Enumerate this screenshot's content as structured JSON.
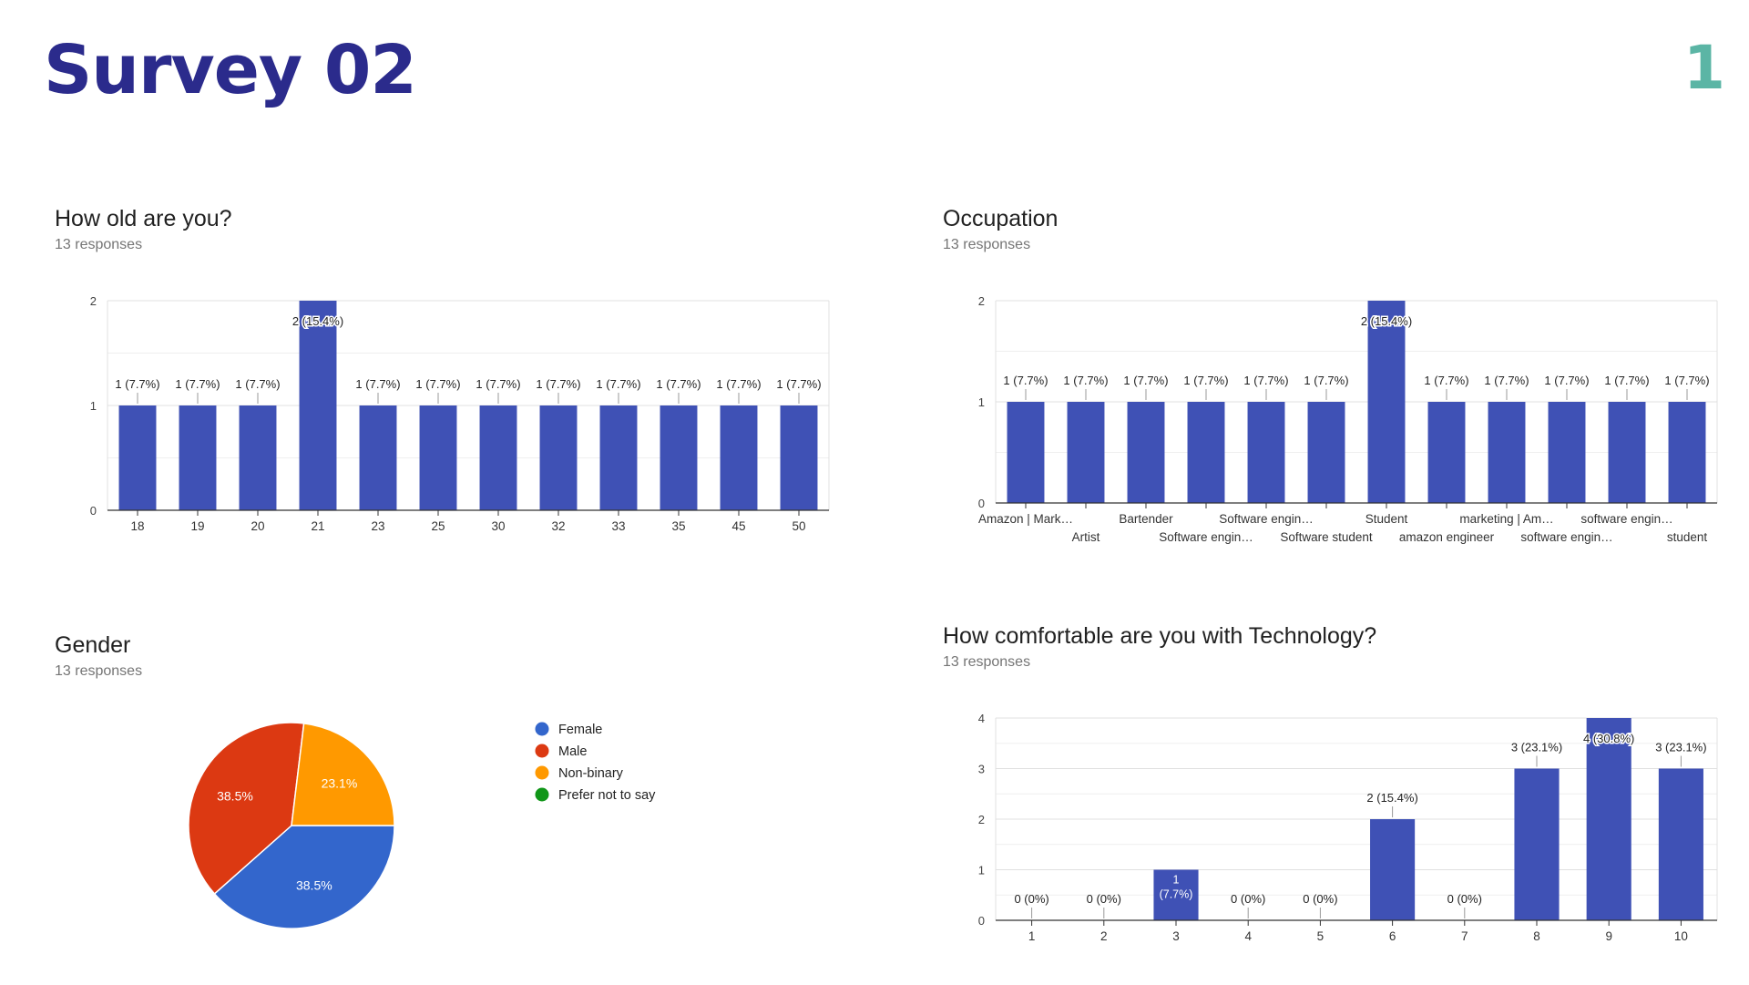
{
  "slide": {
    "title": "Survey 02",
    "page_number": "1",
    "colors": {
      "title": "#2b2b8c",
      "page_number": "#5bb5a5",
      "bar": "#3f51b5"
    }
  },
  "chart_data": [
    {
      "id": "age",
      "type": "bar",
      "title": "How old are you?",
      "subtitle": "13 responses",
      "categories": [
        "18",
        "19",
        "20",
        "21",
        "23",
        "25",
        "30",
        "32",
        "33",
        "35",
        "45",
        "50"
      ],
      "values": [
        1,
        1,
        1,
        2,
        1,
        1,
        1,
        1,
        1,
        1,
        1,
        1
      ],
      "labels": [
        "1 (7.7%)",
        "1 (7.7%)",
        "1 (7.7%)",
        "2 (15.4%)",
        "1 (7.7%)",
        "1 (7.7%)",
        "1 (7.7%)",
        "1 (7.7%)",
        "1 (7.7%)",
        "1 (7.7%)",
        "1 (7.7%)",
        "1 (7.7%)"
      ],
      "ylim": [
        0,
        2
      ],
      "yticks": [
        "0",
        "1",
        "2"
      ],
      "color": "#3f51b5"
    },
    {
      "id": "occupation",
      "type": "bar",
      "title": "Occupation",
      "subtitle": "13 responses",
      "categories": [
        "Amazon | Mark…",
        "Artist",
        "Bartender",
        "Software engin…",
        "Software engin…",
        "Software student",
        "Student",
        "amazon engineer",
        "marketing | Am…",
        "software engin…",
        "software engin…",
        "student"
      ],
      "values": [
        1,
        1,
        1,
        1,
        1,
        1,
        2,
        1,
        1,
        1,
        1,
        1
      ],
      "labels": [
        "1 (7.7%)",
        "1 (7.7%)",
        "1 (7.7%)",
        "1 (7.7%)",
        "1 (7.7%)",
        "1 (7.7%)",
        "2 (15.4%)",
        "1 (7.7%)",
        "1 (7.7%)",
        "1 (7.7%)",
        "1 (7.7%)",
        "1 (7.7%)"
      ],
      "ylim": [
        0,
        2
      ],
      "yticks": [
        "0",
        "1",
        "2"
      ],
      "color": "#3f51b5"
    },
    {
      "id": "gender",
      "type": "pie",
      "title": "Gender",
      "subtitle": "13 responses",
      "categories": [
        "Female",
        "Male",
        "Non-binary",
        "Prefer not to say"
      ],
      "values": [
        38.5,
        38.5,
        23.1,
        0
      ],
      "labels": [
        "38.5%",
        "38.5%",
        "23.1%",
        ""
      ],
      "colors": [
        "#3366cc",
        "#dc3912",
        "#ff9900",
        "#109618"
      ],
      "legend": "right"
    },
    {
      "id": "technology",
      "type": "bar",
      "title": "How comfortable are you with Technology?",
      "subtitle": "13 responses",
      "categories": [
        "1",
        "2",
        "3",
        "4",
        "5",
        "6",
        "7",
        "8",
        "9",
        "10"
      ],
      "values": [
        0,
        0,
        1,
        0,
        0,
        2,
        0,
        3,
        4,
        3
      ],
      "labels": [
        "0 (0%)",
        "0 (0%)",
        "1 (7.7%)",
        "0 (0%)",
        "0 (0%)",
        "2 (15.4%)",
        "0 (0%)",
        "3 (23.1%)",
        "4 (30.8%)",
        "3 (23.1%)"
      ],
      "ylim": [
        0,
        4
      ],
      "yticks": [
        "0",
        "1",
        "2",
        "3",
        "4"
      ],
      "color": "#3f51b5"
    }
  ]
}
